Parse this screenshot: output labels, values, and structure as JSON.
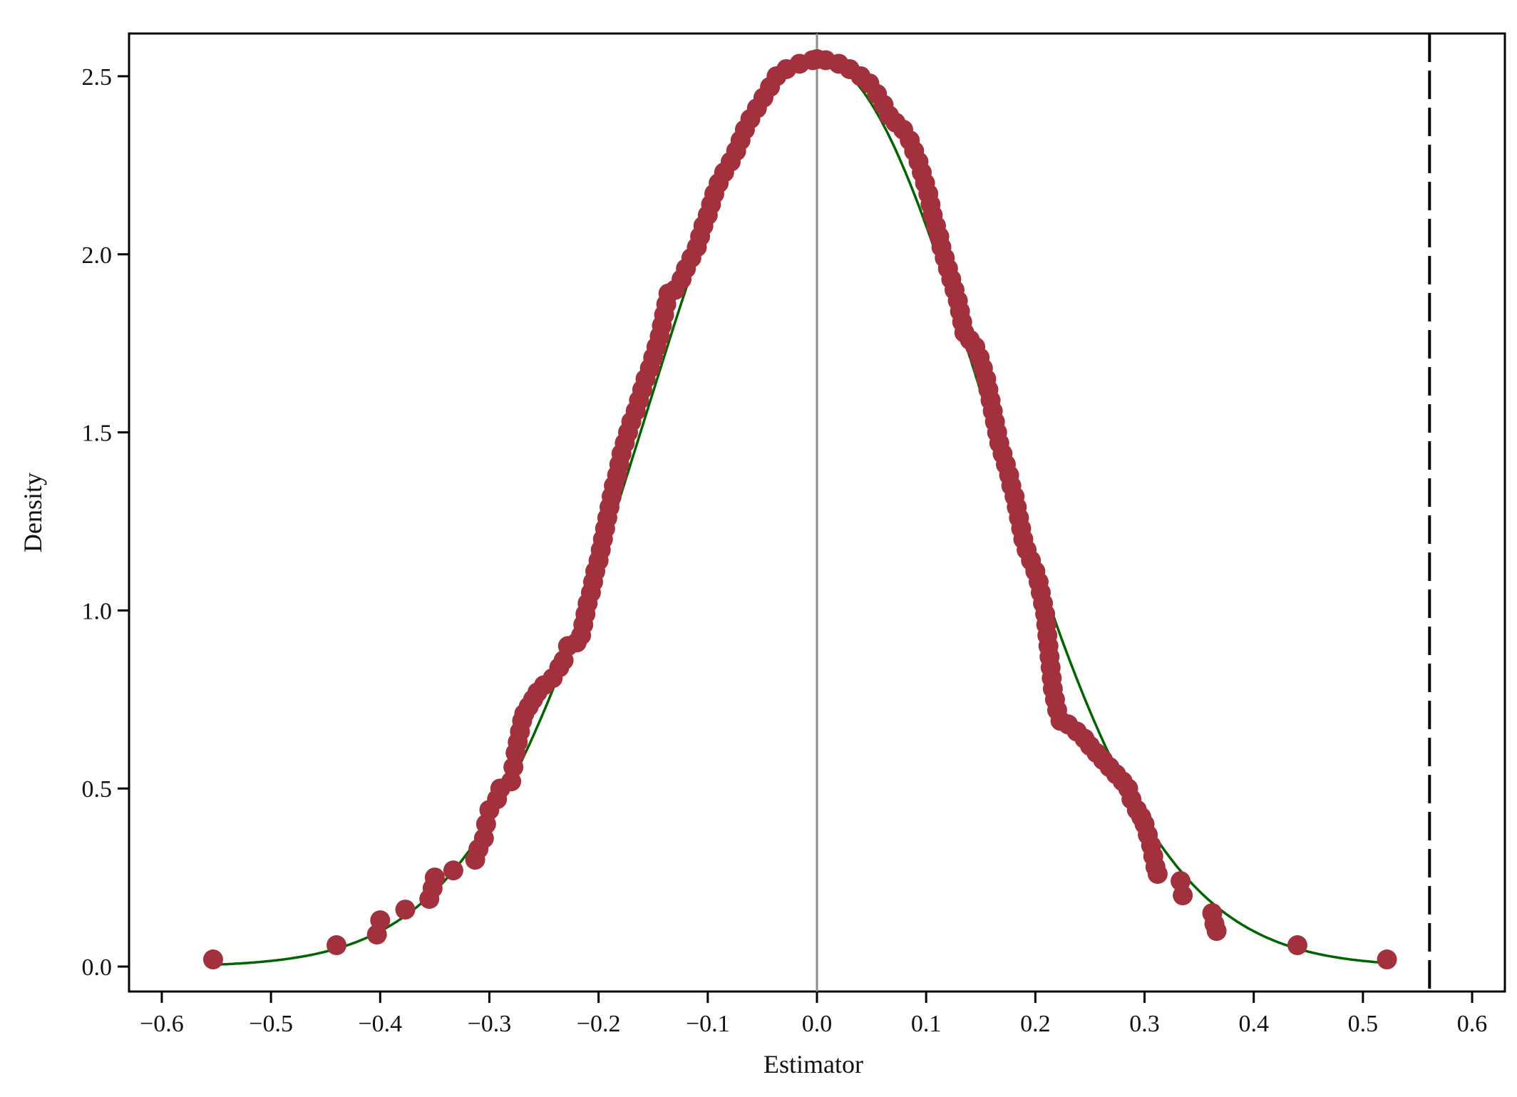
{
  "chart_data": {
    "type": "scatter",
    "title": "",
    "xlabel": "Estimator",
    "ylabel": "Density",
    "xlim": [
      -0.63,
      0.63
    ],
    "ylim": [
      -0.07,
      2.62
    ],
    "x_ticks": [
      -0.6,
      -0.5,
      -0.4,
      -0.3,
      -0.2,
      -0.1,
      0.0,
      0.1,
      0.2,
      0.3,
      0.4,
      0.5,
      0.6
    ],
    "x_tick_labels": [
      "−0.6",
      "−0.5",
      "−0.4",
      "−0.3",
      "−0.2",
      "−0.1",
      "0.0",
      "0.1",
      "0.2",
      "0.3",
      "0.4",
      "0.5",
      "0.6"
    ],
    "y_ticks": [
      0.0,
      0.5,
      1.0,
      1.5,
      2.0,
      2.5
    ],
    "y_tick_labels": [
      "0.0",
      "0.5",
      "1.0",
      "1.5",
      "2.0",
      "2.5"
    ],
    "grid": false,
    "legend": "none",
    "colors": {
      "points": "#a3313d",
      "normal_curve": "#006400",
      "zero_line": "#8c8c8c",
      "reference_line": "#000000"
    },
    "zero_line_x": 0.0,
    "reference_line_x": 0.561,
    "normal_curve": {
      "mean": 0.0,
      "sd": 0.157
    },
    "points": [
      [
        -0.553,
        0.02
      ],
      [
        -0.44,
        0.06
      ],
      [
        -0.403,
        0.09
      ],
      [
        -0.4,
        0.13
      ],
      [
        -0.377,
        0.16
      ],
      [
        -0.355,
        0.19
      ],
      [
        -0.352,
        0.22
      ],
      [
        -0.35,
        0.25
      ],
      [
        -0.333,
        0.27
      ],
      [
        -0.313,
        0.3
      ],
      [
        -0.31,
        0.33
      ],
      [
        -0.305,
        0.36
      ],
      [
        -0.303,
        0.4
      ],
      [
        -0.3,
        0.44
      ],
      [
        -0.293,
        0.47
      ],
      [
        -0.29,
        0.5
      ],
      [
        -0.28,
        0.52
      ],
      [
        -0.278,
        0.56
      ],
      [
        -0.276,
        0.6
      ],
      [
        -0.274,
        0.63
      ],
      [
        -0.272,
        0.66
      ],
      [
        -0.27,
        0.69
      ],
      [
        -0.268,
        0.71
      ],
      [
        -0.264,
        0.73
      ],
      [
        -0.26,
        0.75
      ],
      [
        -0.256,
        0.77
      ],
      [
        -0.25,
        0.79
      ],
      [
        -0.242,
        0.81
      ],
      [
        -0.236,
        0.84
      ],
      [
        -0.232,
        0.86
      ],
      [
        -0.228,
        0.9
      ],
      [
        -0.22,
        0.91
      ],
      [
        -0.216,
        0.93
      ],
      [
        -0.214,
        0.96
      ],
      [
        -0.212,
        0.99
      ],
      [
        -0.21,
        1.02
      ],
      [
        -0.207,
        1.05
      ],
      [
        -0.205,
        1.08
      ],
      [
        -0.203,
        1.11
      ],
      [
        -0.2,
        1.14
      ],
      [
        -0.198,
        1.17
      ],
      [
        -0.196,
        1.2
      ],
      [
        -0.194,
        1.23
      ],
      [
        -0.192,
        1.26
      ],
      [
        -0.19,
        1.29
      ],
      [
        -0.188,
        1.32
      ],
      [
        -0.186,
        1.35
      ],
      [
        -0.183,
        1.38
      ],
      [
        -0.181,
        1.41
      ],
      [
        -0.179,
        1.44
      ],
      [
        -0.176,
        1.47
      ],
      [
        -0.173,
        1.5
      ],
      [
        -0.17,
        1.53
      ],
      [
        -0.166,
        1.56
      ],
      [
        -0.163,
        1.59
      ],
      [
        -0.16,
        1.62
      ],
      [
        -0.157,
        1.65
      ],
      [
        -0.153,
        1.68
      ],
      [
        -0.15,
        1.71
      ],
      [
        -0.147,
        1.74
      ],
      [
        -0.144,
        1.77
      ],
      [
        -0.142,
        1.8
      ],
      [
        -0.14,
        1.83
      ],
      [
        -0.138,
        1.86
      ],
      [
        -0.136,
        1.89
      ],
      [
        -0.13,
        1.9
      ],
      [
        -0.124,
        1.93
      ],
      [
        -0.12,
        1.96
      ],
      [
        -0.115,
        1.99
      ],
      [
        -0.11,
        2.02
      ],
      [
        -0.107,
        2.05
      ],
      [
        -0.104,
        2.08
      ],
      [
        -0.1,
        2.11
      ],
      [
        -0.097,
        2.14
      ],
      [
        -0.094,
        2.17
      ],
      [
        -0.09,
        2.2
      ],
      [
        -0.085,
        2.23
      ],
      [
        -0.079,
        2.26
      ],
      [
        -0.074,
        2.29
      ],
      [
        -0.07,
        2.32
      ],
      [
        -0.066,
        2.35
      ],
      [
        -0.061,
        2.38
      ],
      [
        -0.055,
        2.41
      ],
      [
        -0.049,
        2.44
      ],
      [
        -0.043,
        2.47
      ],
      [
        -0.037,
        2.5
      ],
      [
        -0.028,
        2.52
      ],
      [
        -0.016,
        2.535
      ],
      [
        -0.004,
        2.545
      ],
      [
        0.0,
        2.548
      ],
      [
        0.008,
        2.545
      ],
      [
        0.02,
        2.535
      ],
      [
        0.03,
        2.52
      ],
      [
        0.04,
        2.5
      ],
      [
        0.048,
        2.48
      ],
      [
        0.055,
        2.45
      ],
      [
        0.061,
        2.42
      ],
      [
        0.066,
        2.39
      ],
      [
        0.072,
        2.37
      ],
      [
        0.079,
        2.35
      ],
      [
        0.085,
        2.32
      ],
      [
        0.089,
        2.29
      ],
      [
        0.093,
        2.26
      ],
      [
        0.096,
        2.23
      ],
      [
        0.099,
        2.2
      ],
      [
        0.102,
        2.17
      ],
      [
        0.104,
        2.14
      ],
      [
        0.106,
        2.11
      ],
      [
        0.109,
        2.08
      ],
      [
        0.112,
        2.05
      ],
      [
        0.114,
        2.02
      ],
      [
        0.117,
        1.99
      ],
      [
        0.12,
        1.96
      ],
      [
        0.123,
        1.93
      ],
      [
        0.126,
        1.9
      ],
      [
        0.129,
        1.87
      ],
      [
        0.131,
        1.84
      ],
      [
        0.133,
        1.81
      ],
      [
        0.135,
        1.78
      ],
      [
        0.14,
        1.76
      ],
      [
        0.145,
        1.74
      ],
      [
        0.149,
        1.71
      ],
      [
        0.152,
        1.68
      ],
      [
        0.155,
        1.65
      ],
      [
        0.157,
        1.62
      ],
      [
        0.159,
        1.59
      ],
      [
        0.161,
        1.56
      ],
      [
        0.163,
        1.53
      ],
      [
        0.165,
        1.5
      ],
      [
        0.167,
        1.47
      ],
      [
        0.17,
        1.44
      ],
      [
        0.173,
        1.41
      ],
      [
        0.176,
        1.38
      ],
      [
        0.178,
        1.35
      ],
      [
        0.181,
        1.32
      ],
      [
        0.183,
        1.29
      ],
      [
        0.185,
        1.26
      ],
      [
        0.187,
        1.23
      ],
      [
        0.189,
        1.2
      ],
      [
        0.192,
        1.17
      ],
      [
        0.196,
        1.14
      ],
      [
        0.2,
        1.11
      ],
      [
        0.203,
        1.08
      ],
      [
        0.205,
        1.05
      ],
      [
        0.207,
        1.02
      ],
      [
        0.209,
        0.99
      ],
      [
        0.21,
        0.96
      ],
      [
        0.211,
        0.93
      ],
      [
        0.212,
        0.9
      ],
      [
        0.213,
        0.87
      ],
      [
        0.214,
        0.84
      ],
      [
        0.215,
        0.81
      ],
      [
        0.216,
        0.78
      ],
      [
        0.218,
        0.75
      ],
      [
        0.22,
        0.72
      ],
      [
        0.223,
        0.69
      ],
      [
        0.23,
        0.68
      ],
      [
        0.238,
        0.66
      ],
      [
        0.245,
        0.64
      ],
      [
        0.25,
        0.62
      ],
      [
        0.256,
        0.6
      ],
      [
        0.262,
        0.58
      ],
      [
        0.268,
        0.56
      ],
      [
        0.274,
        0.54
      ],
      [
        0.28,
        0.52
      ],
      [
        0.285,
        0.5
      ],
      [
        0.288,
        0.47
      ],
      [
        0.293,
        0.44
      ],
      [
        0.297,
        0.42
      ],
      [
        0.3,
        0.4
      ],
      [
        0.303,
        0.37
      ],
      [
        0.306,
        0.34
      ],
      [
        0.308,
        0.31
      ],
      [
        0.31,
        0.28
      ],
      [
        0.312,
        0.26
      ],
      [
        0.333,
        0.24
      ],
      [
        0.335,
        0.2
      ],
      [
        0.362,
        0.15
      ],
      [
        0.364,
        0.12
      ],
      [
        0.366,
        0.1
      ],
      [
        0.44,
        0.06
      ],
      [
        0.522,
        0.02
      ]
    ]
  }
}
